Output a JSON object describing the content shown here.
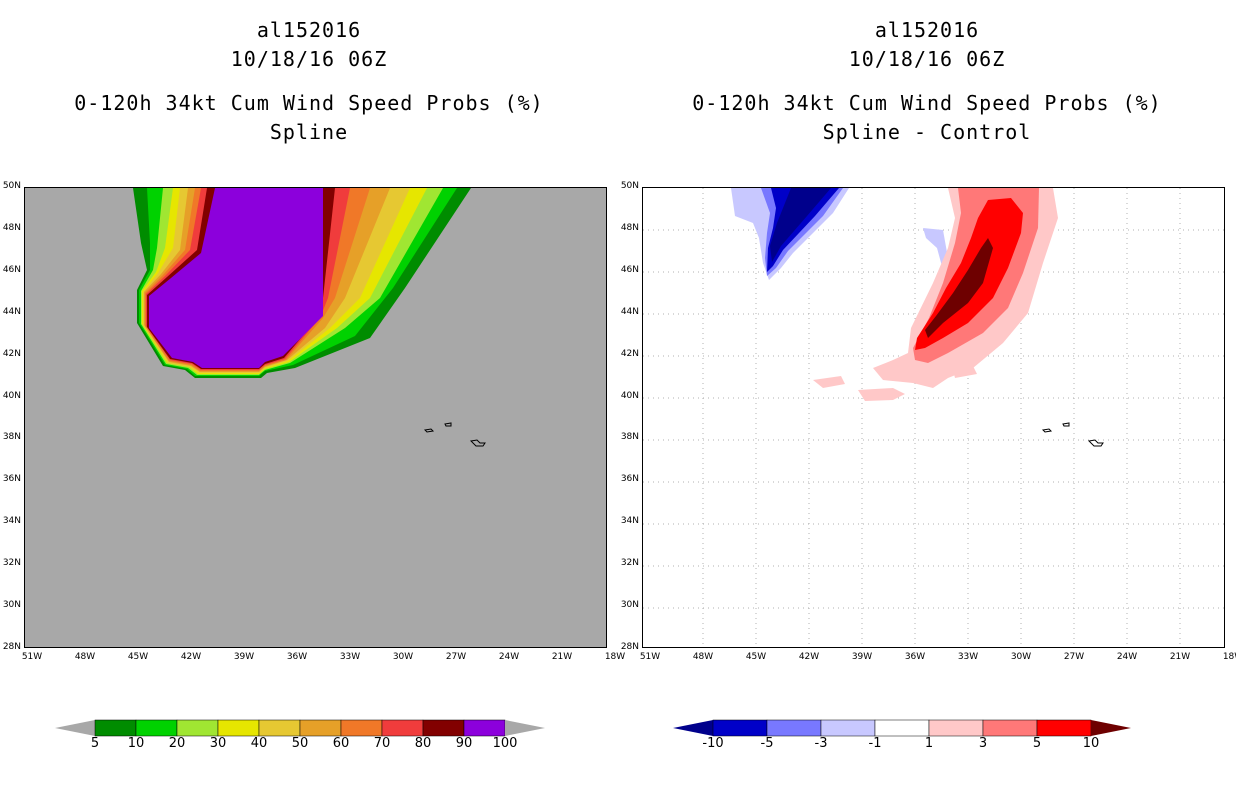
{
  "left_panel": {
    "storm_id": "al152016",
    "datetime": "10/18/16 06Z",
    "product": "0-120h 34kt Cum Wind Speed Probs (%)",
    "variant": "Spline"
  },
  "right_panel": {
    "storm_id": "al152016",
    "datetime": "10/18/16 06Z",
    "product": "0-120h 34kt Cum Wind Speed Probs (%)",
    "variant": "Spline - Control"
  },
  "axes": {
    "lat_labels": [
      "50N",
      "48N",
      "46N",
      "44N",
      "42N",
      "40N",
      "38N",
      "36N",
      "34N",
      "32N",
      "30N",
      "28N"
    ],
    "lon_labels": [
      "51W",
      "48W",
      "45W",
      "42W",
      "39W",
      "36W",
      "33W",
      "30W",
      "27W",
      "24W",
      "21W",
      "18W"
    ]
  },
  "left_colorbar": {
    "labels": [
      "5",
      "10",
      "20",
      "30",
      "40",
      "50",
      "60",
      "70",
      "80",
      "90",
      "100"
    ],
    "colors": [
      "#008c00",
      "#00d200",
      "#a0e632",
      "#e6e600",
      "#e6c832",
      "#e6a028",
      "#f07828",
      "#f03c3c",
      "#820000",
      "#8c00dc"
    ],
    "under_color": "#a8a8a8",
    "over_color": "#a8a8a8"
  },
  "right_colorbar": {
    "labels": [
      "-10",
      "-5",
      "-3",
      "-1",
      "1",
      "3",
      "5",
      "10"
    ],
    "colors": [
      "#0000c8",
      "#7878ff",
      "#c8c8ff",
      "#ffffff",
      "#ffc8c8",
      "#ff7878",
      "#ff0000"
    ],
    "under_color": "#00008c",
    "over_color": "#6e0000"
  },
  "islands": [
    "azores-flores",
    "azores-central",
    "azores-sao-miguel"
  ]
}
